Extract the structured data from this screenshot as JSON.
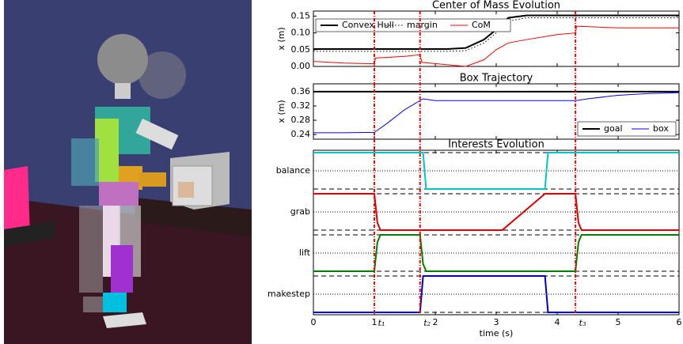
{
  "chart_data": [
    {
      "type": "line",
      "title": "Center of Mass Evolution",
      "ylabel": "x (m)",
      "x": [
        0,
        0.5,
        1,
        1.02,
        1.5,
        1.75,
        1.78,
        2.2,
        2.5,
        2.8,
        3.0,
        3.2,
        3.5,
        4.0,
        4.3,
        4.32,
        5,
        6
      ],
      "series": [
        {
          "name": "Convex Hull",
          "color": "#000000",
          "dash": "solid",
          "width": 2,
          "values": [
            0.052,
            0.052,
            0.052,
            0.052,
            0.052,
            0.052,
            0.052,
            0.052,
            0.055,
            0.08,
            0.11,
            0.145,
            0.152,
            0.152,
            0.152,
            0.152,
            0.152,
            0.152
          ]
        },
        {
          "name": "margin",
          "color": "#000000",
          "dash": "dotted",
          "width": 1,
          "values": [
            0.045,
            0.045,
            0.045,
            0.045,
            0.045,
            0.045,
            0.045,
            0.045,
            0.047,
            0.07,
            0.1,
            0.135,
            0.145,
            0.145,
            0.145,
            0.145,
            0.145,
            0.145
          ]
        },
        {
          "name": "CoM",
          "color": "#ff0000",
          "dash": "solid",
          "width": 1,
          "values": [
            0.015,
            0.01,
            0.008,
            0.025,
            0.03,
            0.035,
            0.012,
            0.005,
            0.0,
            0.02,
            0.05,
            0.07,
            0.08,
            0.095,
            0.1,
            0.12,
            0.115,
            0.115
          ]
        }
      ],
      "xlim": [
        0,
        6
      ],
      "xticks": [
        0,
        1,
        2,
        3,
        4,
        5,
        6
      ],
      "ylim": [
        0,
        0.165
      ],
      "yticks": [
        {
          "value": 0,
          "label": "0.00"
        },
        0.05,
        {
          "value": 0.1,
          "label": "0.10"
        },
        0.15
      ],
      "legend": "upper left"
    },
    {
      "type": "line",
      "title": "Box Trajectory",
      "ylabel": "x (m)",
      "x": [
        0,
        0.5,
        1,
        1.2,
        1.5,
        1.75,
        1.8,
        2,
        4.3,
        4.5,
        5,
        5.5,
        6
      ],
      "series": [
        {
          "name": "goal",
          "color": "#000000",
          "dash": "solid",
          "width": 2,
          "values": [
            0.36,
            0.36,
            0.36,
            0.36,
            0.36,
            0.36,
            0.36,
            0.36,
            0.36,
            0.36,
            0.36,
            0.36,
            0.36
          ]
        },
        {
          "name": "box",
          "color": "#0000ff",
          "dash": "solid",
          "width": 1,
          "values": [
            0.245,
            0.245,
            0.246,
            0.27,
            0.31,
            0.335,
            0.34,
            0.335,
            0.335,
            0.34,
            0.35,
            0.355,
            0.357
          ]
        }
      ],
      "xlim": [
        0,
        6
      ],
      "xticks": [
        0,
        1,
        2,
        3,
        4,
        5,
        6
      ],
      "ylim": [
        0.227,
        0.382
      ],
      "yticks": [
        0.24,
        0.28,
        0.32,
        0.36
      ],
      "legend": "lower right"
    },
    {
      "type": "bands",
      "title": "Interests Evolution",
      "xlabel": "time (s)",
      "x": [
        0,
        1,
        1.05,
        1.1,
        1.75,
        1.8,
        1.85,
        3.1,
        3.8,
        3.85,
        4.3,
        4.35,
        4.4,
        6
      ],
      "series": [
        {
          "name": "balance",
          "color": "#00c8c8",
          "values": [
            1,
            1,
            1,
            1,
            1,
            1,
            0,
            0,
            0,
            1,
            1,
            1,
            1,
            1
          ]
        },
        {
          "name": "grab",
          "color": "#e00000",
          "values": [
            1,
            1,
            0.2,
            0,
            0,
            0,
            0,
            0,
            1,
            1,
            1,
            0.2,
            0,
            0
          ]
        },
        {
          "name": "lift",
          "color": "#008000",
          "values": [
            0,
            0,
            0.8,
            1,
            1,
            0.2,
            0,
            0,
            0,
            0,
            0,
            0.8,
            1,
            1
          ]
        },
        {
          "name": "makestep",
          "color": "#0000cc",
          "values": [
            0,
            0,
            0,
            0,
            0,
            1,
            1,
            1,
            1,
            0,
            0,
            0,
            0,
            0
          ]
        }
      ],
      "xlim": [
        0,
        6
      ],
      "xticks": [
        0,
        1,
        2,
        3,
        4,
        5,
        6
      ],
      "ylim": [
        0,
        1
      ],
      "events": [
        {
          "x": 1,
          "label": "t₁"
        },
        {
          "x": 1.75,
          "label": "t₂"
        },
        {
          "x": 4.3,
          "label": "t₃"
        }
      ]
    }
  ]
}
